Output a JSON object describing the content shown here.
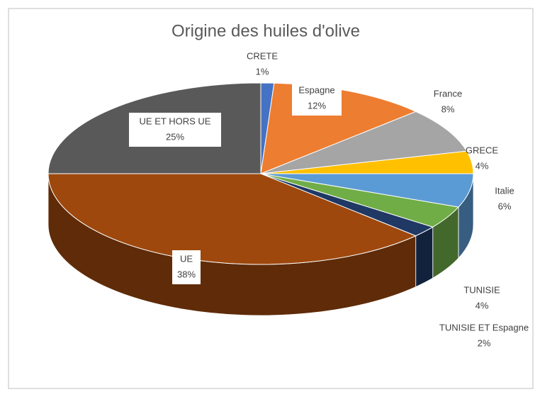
{
  "chart_data": {
    "type": "pie",
    "title": "Origine des huiles d'olive",
    "categories": [
      "CRETE",
      "Espagne",
      "France",
      "GRECE",
      "Italie",
      "TUNISIE",
      "TUNISIE ET Espagne",
      "UE",
      "UE ET HORS UE"
    ],
    "values": [
      1,
      12,
      8,
      4,
      6,
      4,
      2,
      38,
      25
    ],
    "value_labels": [
      "1%",
      "12%",
      "8%",
      "4%",
      "6%",
      "4%",
      "2%",
      "38%",
      "25%"
    ],
    "colors": [
      "#4472c4",
      "#ed7d31",
      "#a5a5a5",
      "#ffc000",
      "#5b9bd5",
      "#70ad47",
      "#1f3864",
      "#9e480e",
      "#595959"
    ]
  }
}
